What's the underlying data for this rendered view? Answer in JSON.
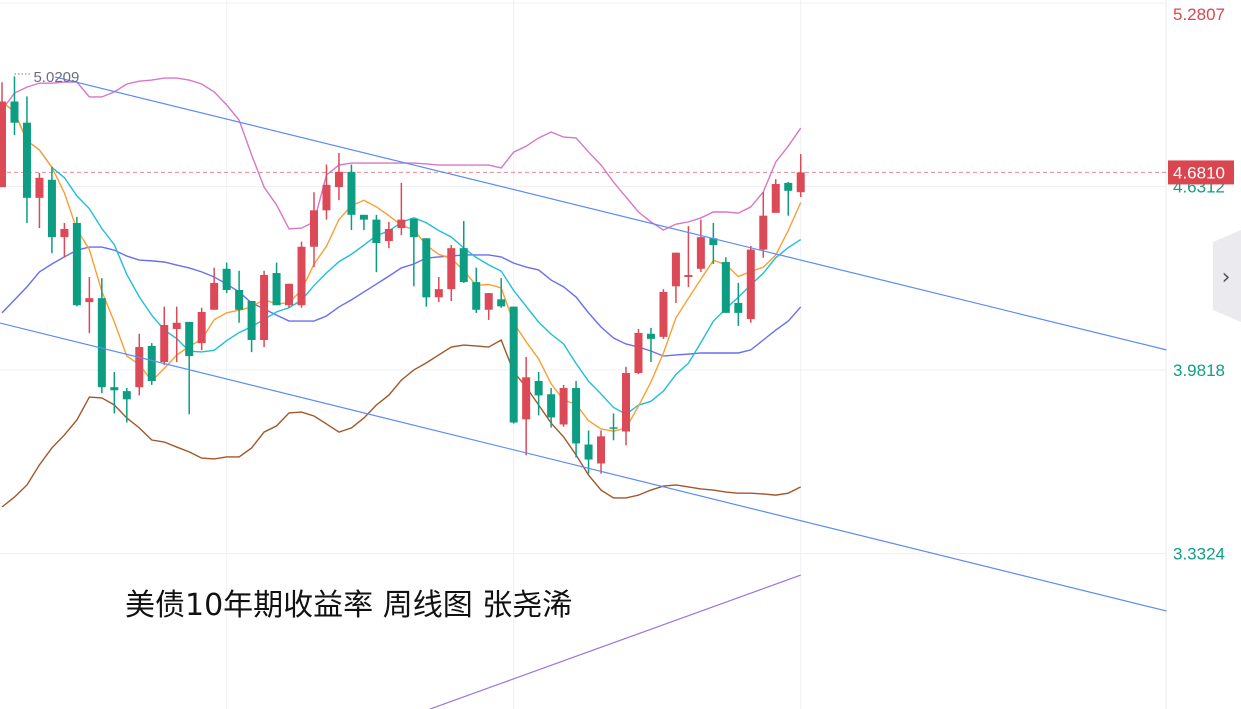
{
  "title": "美债10年期收益率 周线图 张尧浠",
  "colors": {
    "up": "#dc4a58",
    "down": "#0c9d82",
    "ma5": "#f7a035",
    "ma10": "#1fbfd8",
    "boll_mid": "#6a6ef0",
    "boll_upper": "#d876c8",
    "boll_lower": "#a0572a",
    "channel": "#5b8cf5",
    "trend_purple": "#9a72e0",
    "last_price_bg": "#d9464f"
  },
  "expand_button": {
    "icon": "chevron-right-icon",
    "glyph": "›"
  },
  "chart_data": {
    "type": "candlestick",
    "title": "",
    "y_axis_position": "right",
    "y_ticks": [
      "5.2807",
      "4.6312",
      "3.9818",
      "3.3324"
    ],
    "y_tick_values": [
      5.2807,
      4.6312,
      3.9818,
      3.3324
    ],
    "last_price": 4.681,
    "last_price_label": "4.6810",
    "high_marker": {
      "label": "5.0209",
      "value": 5.0209,
      "index": 1
    },
    "ohlc": [
      [
        4.629,
        5.0,
        4.629,
        4.932
      ],
      [
        4.932,
        5.021,
        4.813,
        4.857
      ],
      [
        4.857,
        4.95,
        4.502,
        4.591
      ],
      [
        4.591,
        4.679,
        4.484,
        4.662
      ],
      [
        4.655,
        4.701,
        4.395,
        4.452
      ],
      [
        4.452,
        4.502,
        4.381,
        4.481
      ],
      [
        4.502,
        4.524,
        4.207,
        4.211
      ],
      [
        4.222,
        4.311,
        4.112,
        4.236
      ],
      [
        4.236,
        4.307,
        3.9,
        3.921
      ],
      [
        3.921,
        3.975,
        3.828,
        3.91
      ],
      [
        3.907,
        3.918,
        3.796,
        3.878
      ],
      [
        3.921,
        4.11,
        3.892,
        4.063
      ],
      [
        4.067,
        4.077,
        3.929,
        3.943
      ],
      [
        4.01,
        4.206,
        3.999,
        4.141
      ],
      [
        4.127,
        4.206,
        4.01,
        4.149
      ],
      [
        4.152,
        4.152,
        3.825,
        4.031
      ],
      [
        4.077,
        4.202,
        4.052,
        4.187
      ],
      [
        4.195,
        4.344,
        4.195,
        4.29
      ],
      [
        4.34,
        4.362,
        4.254,
        4.265
      ],
      [
        4.265,
        4.333,
        4.149,
        4.195
      ],
      [
        4.226,
        4.226,
        4.045,
        4.088
      ],
      [
        4.088,
        4.333,
        4.063,
        4.318
      ],
      [
        4.325,
        4.362,
        4.211,
        4.211
      ],
      [
        4.211,
        4.287,
        4.202,
        4.287
      ],
      [
        4.211,
        4.436,
        4.202,
        4.418
      ],
      [
        4.418,
        4.611,
        4.346,
        4.547
      ],
      [
        4.547,
        4.709,
        4.514,
        4.637
      ],
      [
        4.629,
        4.75,
        4.583,
        4.683
      ],
      [
        4.683,
        4.709,
        4.477,
        4.531
      ],
      [
        4.531,
        4.531,
        4.477,
        4.514
      ],
      [
        4.514,
        4.531,
        4.328,
        4.431
      ],
      [
        4.438,
        4.506,
        4.413,
        4.481
      ],
      [
        4.484,
        4.644,
        4.459,
        4.514
      ],
      [
        4.517,
        4.517,
        4.278,
        4.452
      ],
      [
        4.448,
        4.448,
        4.206,
        4.239
      ],
      [
        4.239,
        4.311,
        4.222,
        4.268
      ],
      [
        4.268,
        4.424,
        4.226,
        4.413
      ],
      [
        4.413,
        4.509,
        4.29,
        4.293
      ],
      [
        4.293,
        4.344,
        4.184,
        4.195
      ],
      [
        4.195,
        4.254,
        4.159,
        4.254
      ],
      [
        4.232,
        4.307,
        4.202,
        4.207
      ],
      [
        4.206,
        4.206,
        3.792,
        3.796
      ],
      [
        3.807,
        4.028,
        3.68,
        3.956
      ],
      [
        3.943,
        3.975,
        3.821,
        3.892
      ],
      [
        3.896,
        3.918,
        3.778,
        3.814
      ],
      [
        3.789,
        3.929,
        3.781,
        3.918
      ],
      [
        3.918,
        3.943,
        3.672,
        3.722
      ],
      [
        3.718,
        3.768,
        3.615,
        3.665
      ],
      [
        3.651,
        3.768,
        3.615,
        3.747
      ],
      [
        3.779,
        3.828,
        3.733,
        3.775
      ],
      [
        3.764,
        3.993,
        3.715,
        3.971
      ],
      [
        3.971,
        4.127,
        3.967,
        4.113
      ],
      [
        4.11,
        4.131,
        4.01,
        4.092
      ],
      [
        4.099,
        4.268,
        4.092,
        4.258
      ],
      [
        4.278,
        4.397,
        4.219,
        4.397
      ],
      [
        4.311,
        4.491,
        4.275,
        4.318
      ],
      [
        4.34,
        4.514,
        4.329,
        4.452
      ],
      [
        4.448,
        4.502,
        4.357,
        4.424
      ],
      [
        4.364,
        4.381,
        4.184,
        4.184
      ],
      [
        4.219,
        4.29,
        4.138,
        4.184
      ],
      [
        4.162,
        4.421,
        4.149,
        4.408
      ],
      [
        4.408,
        4.611,
        4.379,
        4.528
      ],
      [
        4.538,
        4.657,
        4.538,
        4.64
      ],
      [
        4.644,
        4.647,
        4.528,
        4.616
      ],
      [
        4.611,
        4.746,
        4.594,
        4.681
      ]
    ],
    "boll_upper": [
      4.902,
      4.962,
      4.983,
      4.997,
      4.997,
      5.001,
      5.001,
      4.948,
      4.948,
      4.966,
      4.994,
      5.004,
      5.008,
      5.015,
      5.015,
      5.008,
      4.994,
      4.966,
      4.92,
      4.866,
      4.743,
      4.629,
      4.566,
      4.481,
      4.484,
      4.506,
      4.672,
      4.707,
      4.714,
      4.714,
      4.714,
      4.714,
      4.714,
      4.714,
      4.711,
      4.707,
      4.707,
      4.707,
      4.707,
      4.707,
      4.697,
      4.753,
      4.774,
      4.803,
      4.824,
      4.806,
      4.803,
      4.753,
      4.707,
      4.647,
      4.594,
      4.541,
      4.506,
      4.477,
      4.498,
      4.506,
      4.52,
      4.541,
      4.541,
      4.537,
      4.559,
      4.612,
      4.718,
      4.774,
      4.838
    ],
    "boll_mid": [
      4.184,
      4.23,
      4.276,
      4.329,
      4.357,
      4.382,
      4.406,
      4.417,
      4.417,
      4.406,
      4.385,
      4.371,
      4.368,
      4.364,
      4.353,
      4.343,
      4.329,
      4.311,
      4.286,
      4.258,
      4.219,
      4.198,
      4.176,
      4.155,
      4.155,
      4.155,
      4.173,
      4.205,
      4.23,
      4.258,
      4.286,
      4.314,
      4.343,
      4.357,
      4.378,
      4.382,
      4.385,
      4.389,
      4.389,
      4.389,
      4.382,
      4.36,
      4.346,
      4.336,
      4.3,
      4.276,
      4.24,
      4.184,
      4.134,
      4.095,
      4.074,
      4.063,
      4.049,
      4.031,
      4.035,
      4.038,
      4.042,
      4.042,
      4.042,
      4.042,
      4.053,
      4.088,
      4.123,
      4.155,
      4.205
    ],
    "boll_lower": [
      3.497,
      3.532,
      3.575,
      3.646,
      3.706,
      3.752,
      3.805,
      3.886,
      3.883,
      3.858,
      3.812,
      3.777,
      3.734,
      3.727,
      3.709,
      3.692,
      3.67,
      3.667,
      3.674,
      3.674,
      3.706,
      3.762,
      3.784,
      3.83,
      3.833,
      3.819,
      3.791,
      3.762,
      3.777,
      3.812,
      3.858,
      3.893,
      3.946,
      3.982,
      4.007,
      4.035,
      4.063,
      4.07,
      4.067,
      4.063,
      4.088,
      3.975,
      3.922,
      3.858,
      3.794,
      3.745,
      3.681,
      3.61,
      3.557,
      3.529,
      3.529,
      3.539,
      3.557,
      3.571,
      3.575,
      3.568,
      3.561,
      3.557,
      3.55,
      3.546,
      3.546,
      3.543,
      3.539,
      3.546,
      3.568
    ],
    "moving_averages": [
      5,
      10
    ],
    "trendlines": [
      {
        "kind": "channel-upper",
        "from": [
          4.25,
          5.019
        ],
        "to": [
          93.3,
          4.053
        ]
      },
      {
        "kind": "channel-lower",
        "from": [
          -0.16,
          4.148
        ],
        "to": [
          93.3,
          3.129
        ]
      },
      {
        "kind": "purple",
        "from": [
          34.3,
          2.782
        ],
        "to": [
          64,
          3.256
        ]
      }
    ],
    "grid": true
  }
}
